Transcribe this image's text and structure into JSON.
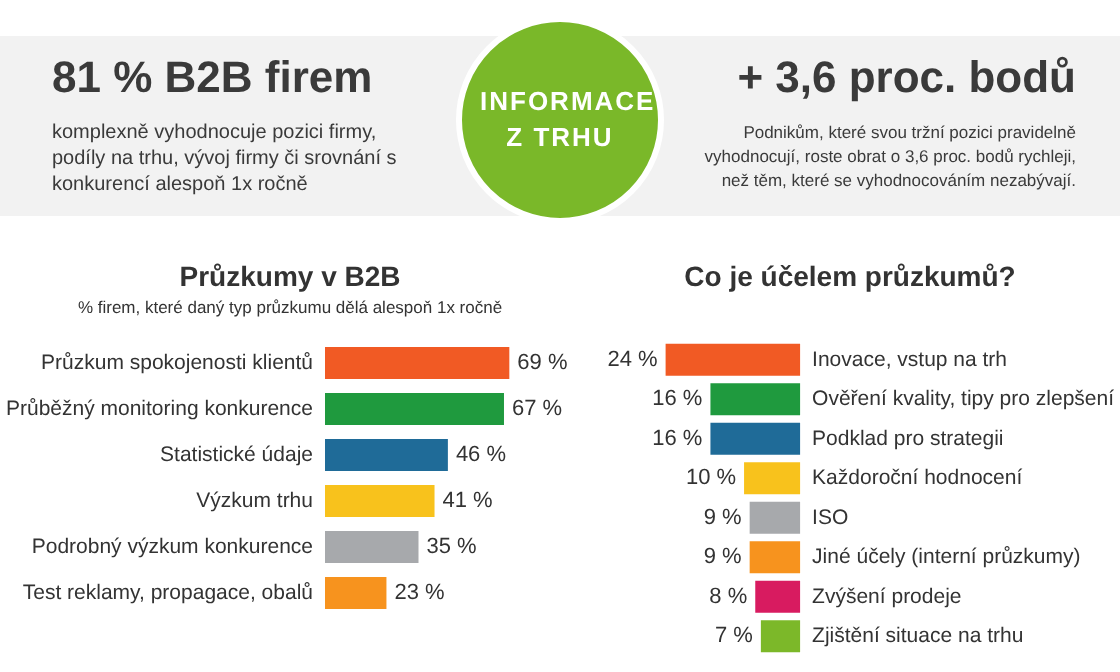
{
  "chart_data": [
    {
      "type": "other",
      "title": "INFORMACE Z TRHU",
      "annotations": [
        "81 % B2B firem",
        "komplexně vyhodnocuje pozici firmy, podíly na trhu, vývoj firmy či srovnání s konkurencí alespoň 1x ročně",
        "+ 3,6 proc. bodů",
        "Podnikům, které svou tržní pozici pravidelně vyhodnocují,  roste obrat o 3,6 proc. bodů rychleji, než těm, které se vyhodnocováním nezabývají."
      ]
    },
    {
      "type": "bar",
      "orientation": "horizontal",
      "title": "Průzkumy v B2B",
      "subtitle": "% firem, které daný typ průzkumu dělá alespoň 1x ročně",
      "categories": [
        "Průzkum spokojenosti klientů",
        "Průběžný monitoring konkurence",
        "Statistické údaje",
        "Výzkum trhu",
        "Podrobný výzkum konkurence",
        "Test reklamy, propagace, obalů"
      ],
      "values": [
        69,
        67,
        46,
        41,
        35,
        23
      ],
      "value_labels": [
        "69 %",
        "67 %",
        "46 %",
        "41 %",
        "35 %",
        "23 %"
      ],
      "colors": [
        "#f15a24",
        "#1f9a3e",
        "#1f6b98",
        "#f8c21c",
        "#a7a9ac",
        "#f7931e"
      ],
      "xlim": [
        0,
        70
      ],
      "tick_labels": "y"
    },
    {
      "type": "bar",
      "orientation": "horizontal",
      "title": "Co je účelem průzkumů?",
      "categories": [
        "Inovace, vstup na trh",
        "Ověření kvality, tipy pro zlepšení",
        "Podklad pro strategii",
        "Každoroční hodnocení",
        "ISO",
        "Jiné účely (interní průzkumy)",
        "Zvýšení prodeje",
        "Zjištění situace na trhu"
      ],
      "values": [
        24,
        16,
        16,
        10,
        9,
        9,
        8,
        7
      ],
      "value_labels": [
        "24 %",
        "16 %",
        "16 %",
        "10 %",
        "9 %",
        "9 %",
        "8 %",
        "7 %"
      ],
      "colors": [
        "#f15a24",
        "#1f9a3e",
        "#1f6b98",
        "#f8c21c",
        "#a7a9ac",
        "#f7931e",
        "#d81b60",
        "#7cb829"
      ],
      "xlim": [
        25,
        0
      ],
      "tick_labels": "y"
    }
  ]
}
